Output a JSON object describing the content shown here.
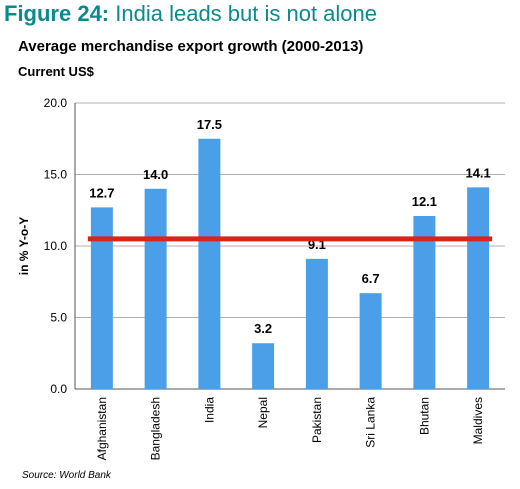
{
  "figure": {
    "label": "Figure 24:",
    "title": "India leads but is not alone"
  },
  "source": "Source: World Bank",
  "colors": {
    "title": "#0a8a8f",
    "bar": "#4a9fe8",
    "average_line": "#d9241c",
    "grid": "#b0b0b0"
  },
  "chart_data": {
    "type": "bar",
    "title": "Average  merchandise export growth (2000-2013)",
    "subtitle": "Current US$",
    "xlabel": "",
    "ylabel": "in % Y-o-Y",
    "ylim": [
      0,
      20
    ],
    "yticks": [
      "0.0",
      "5.0",
      "10.0",
      "15.0",
      "20.0"
    ],
    "grid": "horizontal",
    "categories": [
      "Afghanistan",
      "Bangladesh",
      "India",
      "Nepal",
      "Pakistan",
      "Sri Lanka",
      "Bhutan",
      "Maldives"
    ],
    "values": [
      12.7,
      14.0,
      17.5,
      3.2,
      9.1,
      6.7,
      12.1,
      14.1
    ],
    "labels": [
      "12.7",
      "14.0",
      "17.5",
      "3.2",
      "9.1",
      "6.7",
      "12.1",
      "14.1"
    ],
    "reference_line": {
      "value": 10.5
    }
  }
}
